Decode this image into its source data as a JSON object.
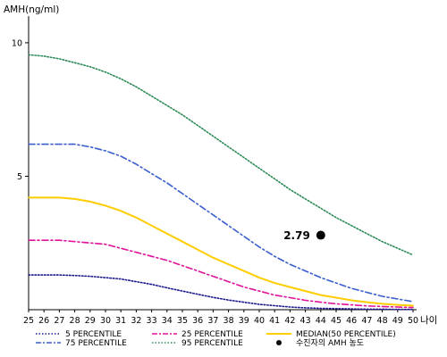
{
  "chart_data": {
    "type": "line",
    "ylabel": "AMH(ng/ml)",
    "xlabel": "나이",
    "xlim": [
      25,
      50
    ],
    "ylim": [
      0,
      11
    ],
    "grid": false,
    "x_ticks": [
      "25",
      "26",
      "27",
      "28",
      "29",
      "30",
      "31",
      "32",
      "33",
      "34",
      "35",
      "36",
      "37",
      "38",
      "39",
      "40",
      "41",
      "42",
      "43",
      "44",
      "45",
      "46",
      "47",
      "48",
      "49",
      "50"
    ],
    "y_ticks": [
      "5",
      "10"
    ],
    "series": [
      {
        "name": "95 PERCENTILE",
        "color": "#2e8b57",
        "dash": "1.5,2",
        "x": [
          25,
          26,
          27,
          28,
          29,
          30,
          31,
          32,
          33,
          34,
          35,
          36,
          37,
          38,
          39,
          40,
          41,
          42,
          43,
          44,
          45,
          46,
          47,
          48,
          49,
          50
        ],
        "values": [
          9.55,
          9.5,
          9.4,
          9.25,
          9.1,
          8.9,
          8.65,
          8.35,
          8.0,
          7.65,
          7.3,
          6.9,
          6.5,
          6.1,
          5.7,
          5.3,
          4.9,
          4.5,
          4.15,
          3.8,
          3.45,
          3.15,
          2.85,
          2.55,
          2.3,
          2.05
        ]
      },
      {
        "name": "75 PERCENTILE",
        "color": "#3a5fcd",
        "dash": "7,3,2,3",
        "x": [
          25,
          26,
          27,
          28,
          29,
          30,
          31,
          32,
          33,
          34,
          35,
          36,
          37,
          38,
          39,
          40,
          41,
          42,
          43,
          44,
          45,
          46,
          47,
          48,
          49,
          50
        ],
        "values": [
          6.2,
          6.2,
          6.2,
          6.2,
          6.1,
          5.95,
          5.75,
          5.45,
          5.1,
          4.75,
          4.35,
          3.95,
          3.55,
          3.15,
          2.75,
          2.35,
          2.0,
          1.7,
          1.45,
          1.2,
          1.0,
          0.8,
          0.65,
          0.5,
          0.4,
          0.3
        ]
      },
      {
        "name": "MEDIAN(50 PERCENTILE)",
        "color": "#ffcc00",
        "dash": "",
        "x": [
          25,
          26,
          27,
          28,
          29,
          30,
          31,
          32,
          33,
          34,
          35,
          36,
          37,
          38,
          39,
          40,
          41,
          42,
          43,
          44,
          45,
          46,
          47,
          48,
          49,
          50
        ],
        "values": [
          4.2,
          4.2,
          4.2,
          4.15,
          4.05,
          3.9,
          3.7,
          3.45,
          3.15,
          2.85,
          2.55,
          2.25,
          1.95,
          1.7,
          1.45,
          1.2,
          1.0,
          0.85,
          0.7,
          0.55,
          0.45,
          0.35,
          0.28,
          0.22,
          0.18,
          0.15
        ]
      },
      {
        "name": "25 PERCENTILE",
        "color": "#e0119a",
        "dash": "7,3,2,3",
        "x": [
          25,
          26,
          27,
          28,
          29,
          30,
          31,
          32,
          33,
          34,
          35,
          36,
          37,
          38,
          39,
          40,
          41,
          42,
          43,
          44,
          45,
          46,
          47,
          48,
          49,
          50
        ],
        "values": [
          2.6,
          2.6,
          2.6,
          2.55,
          2.5,
          2.45,
          2.3,
          2.15,
          2.0,
          1.85,
          1.65,
          1.45,
          1.25,
          1.05,
          0.85,
          0.7,
          0.55,
          0.45,
          0.35,
          0.28,
          0.22,
          0.18,
          0.14,
          0.12,
          0.1,
          0.08
        ]
      },
      {
        "name": "5 PERCENTILE",
        "color": "#1a1a8c",
        "dash": "1.5,2",
        "x": [
          25,
          26,
          27,
          28,
          29,
          30,
          31,
          32,
          33,
          34,
          35,
          36,
          37,
          38,
          39,
          40,
          41,
          42,
          43,
          44,
          45,
          46,
          47,
          48,
          49,
          50
        ],
        "values": [
          1.3,
          1.3,
          1.3,
          1.28,
          1.25,
          1.2,
          1.15,
          1.05,
          0.95,
          0.82,
          0.7,
          0.58,
          0.46,
          0.36,
          0.28,
          0.2,
          0.15,
          0.1,
          0.07,
          0.05,
          0.04,
          0.03,
          0.02,
          0.02,
          0.01,
          0.01
        ]
      }
    ],
    "point": {
      "x": 44,
      "y": 2.79,
      "label": "2.79",
      "legend": "수진자의 AMH 농도",
      "color": "#000000"
    },
    "legend": {
      "placement": "bottom",
      "items": [
        {
          "label": "5 PERCENTILE",
          "color": "#1a1a8c",
          "style": "dotted"
        },
        {
          "label": "25 PERCENTILE",
          "color": "#e0119a",
          "style": "dashdot"
        },
        {
          "label": "MEDIAN(50 PERCENTILE)",
          "color": "#ffcc00",
          "style": "solid"
        },
        {
          "label": "75 PERCENTILE",
          "color": "#3a5fcd",
          "style": "dashdot"
        },
        {
          "label": "95 PERCENTILE",
          "color": "#2e8b57",
          "style": "dotted"
        },
        {
          "label": "수진자의 AMH 농도",
          "color": "#000000",
          "style": "marker"
        }
      ]
    }
  }
}
